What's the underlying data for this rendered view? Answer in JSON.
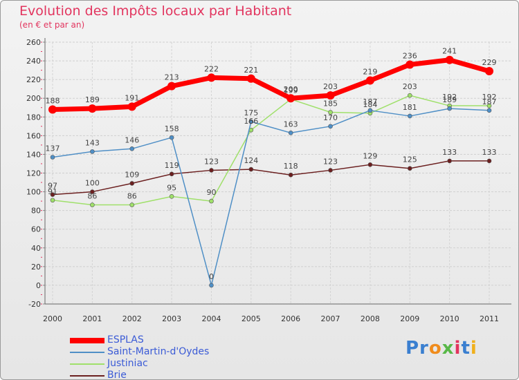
{
  "chart_data": {
    "type": "line",
    "title": "Evolution des Impôts locaux par Habitant",
    "subtitle": "(en € et par an)",
    "xlabel": "",
    "ylabel": "",
    "categories": [
      "2000",
      "2001",
      "2002",
      "2003",
      "2004",
      "2005",
      "2006",
      "2007",
      "2008",
      "2009",
      "2010",
      "2011"
    ],
    "ylim": [
      -20,
      260
    ],
    "yticks": [
      -20,
      0,
      20,
      40,
      60,
      80,
      100,
      120,
      140,
      160,
      180,
      200,
      220,
      240,
      260
    ],
    "grid": true,
    "legend_position": "bottom-left",
    "series": [
      {
        "name": "ESPLAS",
        "color": "#ff0000",
        "values": [
          188,
          189,
          191,
          213,
          222,
          221,
          200,
          203,
          219,
          236,
          241,
          229
        ]
      },
      {
        "name": "Saint-Martin-d'Oydes",
        "color": "#4f8fc6",
        "values": [
          137,
          143,
          146,
          158,
          0,
          175,
          163,
          170,
          187,
          181,
          189,
          187
        ]
      },
      {
        "name": "Justiniac",
        "color": "#9fe06a",
        "values": [
          91,
          86,
          86,
          95,
          90,
          166,
          199,
          185,
          184,
          203,
          192,
          192
        ]
      },
      {
        "name": "Brie",
        "color": "#6b1f1f",
        "values": [
          97,
          100,
          109,
          119,
          123,
          124,
          118,
          123,
          129,
          125,
          133,
          133
        ]
      }
    ]
  },
  "logo": {
    "p": "Pr",
    "o": "o",
    "x": "x",
    "i": "i",
    "t": "t",
    "i2": "i"
  }
}
